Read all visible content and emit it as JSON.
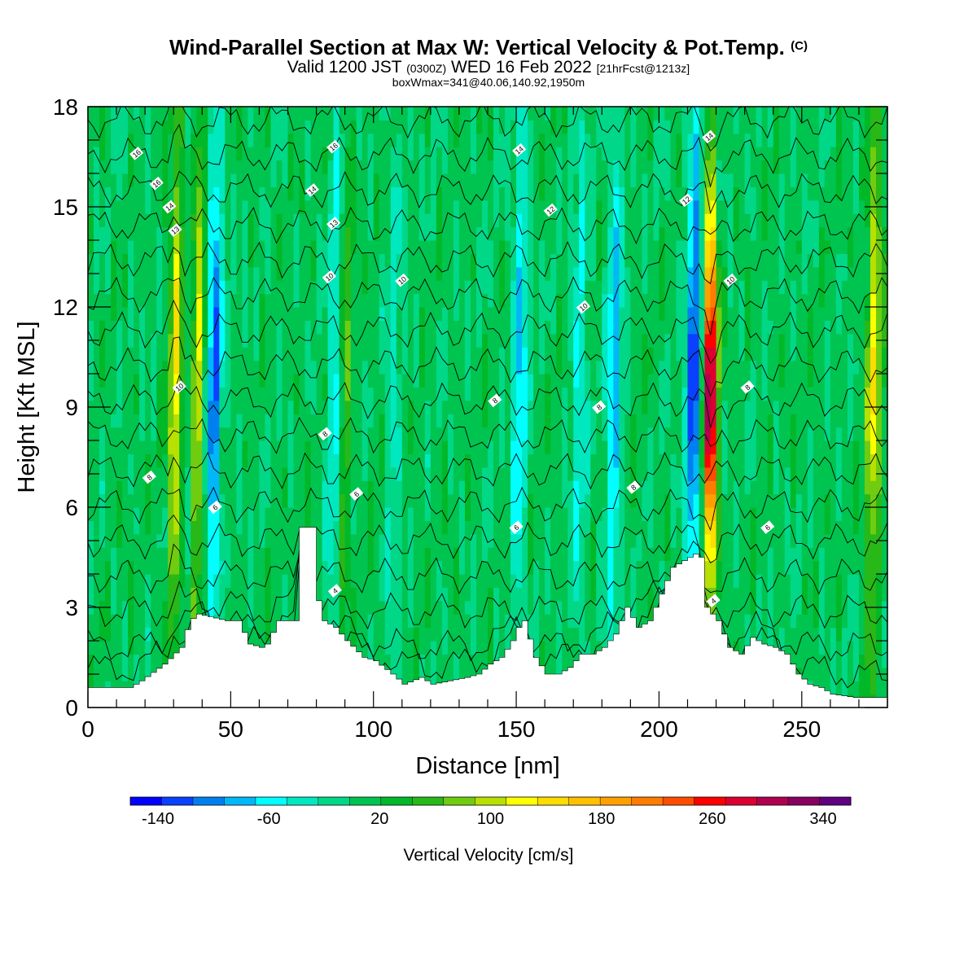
{
  "title": {
    "main": "Wind-Parallel Section at Max W: Vertical Velocity & Pot.Temp.",
    "copyright": "(C)",
    "valid_prefix": "Valid 1200 JST",
    "valid_utc": "(0300Z)",
    "valid_date": "WED 16 Feb 2022",
    "forecast": "[21hrFcst@1213z]",
    "box_info": "boxWmax=341@40.06,140.92,1950m"
  },
  "chart_data": {
    "type": "heatmap",
    "xlabel": "Distance [nm]",
    "ylabel": "Height [Kft MSL]",
    "xlim": [
      0,
      280
    ],
    "ylim": [
      0,
      18
    ],
    "x_ticks": [
      0,
      50,
      100,
      150,
      200,
      250
    ],
    "y_ticks": [
      0,
      3,
      6,
      9,
      12,
      15,
      18
    ],
    "colorbar": {
      "label": "Vertical Velocity [cm/s]",
      "tick_values": [
        -140,
        -60,
        20,
        100,
        180,
        260,
        340
      ],
      "range": [
        -160,
        360
      ],
      "colors": [
        "#0000ff",
        "#0a40ff",
        "#0080f0",
        "#00b8f8",
        "#00ffff",
        "#00e8c0",
        "#00d888",
        "#00c450",
        "#00b828",
        "#28b818",
        "#70cc10",
        "#b8e000",
        "#ffff00",
        "#ffdc00",
        "#ffc000",
        "#ffa000",
        "#ff7c00",
        "#ff4c00",
        "#ff0000",
        "#dc0030",
        "#b00050",
        "#880060",
        "#600080"
      ]
    },
    "vertical_velocity_features": [
      {
        "x": 31,
        "peak": 140
      },
      {
        "x": 38,
        "peak": 110
      },
      {
        "x": 34,
        "peak": -60
      },
      {
        "x": 44,
        "peak": -120
      },
      {
        "x": 87,
        "peak": -110
      },
      {
        "x": 89,
        "peak": 100
      },
      {
        "x": 107,
        "peak": -40
      },
      {
        "x": 151,
        "peak": -80
      },
      {
        "x": 172,
        "peak": -60
      },
      {
        "x": 184,
        "peak": -90
      },
      {
        "x": 212,
        "peak": -140
      },
      {
        "x": 218,
        "peak": 341
      },
      {
        "x": 275,
        "peak": 120
      }
    ],
    "terrain_kft": [
      [
        0,
        0.6
      ],
      [
        10,
        0.6
      ],
      [
        14,
        0.6
      ],
      [
        18,
        0.8
      ],
      [
        26,
        1.3
      ],
      [
        32,
        1.8
      ],
      [
        35,
        2.6
      ],
      [
        38,
        2.8
      ],
      [
        48,
        2.6
      ],
      [
        52,
        2.6
      ],
      [
        56,
        1.9
      ],
      [
        60,
        1.8
      ],
      [
        62,
        1.9
      ],
      [
        66,
        2.6
      ],
      [
        72,
        2.6
      ],
      [
        74,
        5.4
      ],
      [
        78,
        5.4
      ],
      [
        80,
        3.2
      ],
      [
        82,
        2.6
      ],
      [
        86,
        2.4
      ],
      [
        90,
        2.0
      ],
      [
        96,
        1.5
      ],
      [
        100,
        1.4
      ],
      [
        106,
        1.0
      ],
      [
        110,
        0.7
      ],
      [
        116,
        0.9
      ],
      [
        120,
        0.7
      ],
      [
        126,
        0.8
      ],
      [
        132,
        0.9
      ],
      [
        136,
        1.0
      ],
      [
        140,
        1.3
      ],
      [
        144,
        1.5
      ],
      [
        148,
        2.0
      ],
      [
        150,
        2.4
      ],
      [
        152,
        2.6
      ],
      [
        156,
        1.5
      ],
      [
        160,
        1.0
      ],
      [
        164,
        1.0
      ],
      [
        168,
        1.2
      ],
      [
        172,
        1.6
      ],
      [
        176,
        1.6
      ],
      [
        180,
        1.8
      ],
      [
        184,
        2.2
      ],
      [
        188,
        3.0
      ],
      [
        192,
        2.4
      ],
      [
        196,
        2.6
      ],
      [
        200,
        3.4
      ],
      [
        204,
        4.2
      ],
      [
        208,
        4.4
      ],
      [
        212,
        4.6
      ],
      [
        214,
        4.5
      ],
      [
        216,
        3.0
      ],
      [
        220,
        2.6
      ],
      [
        224,
        1.8
      ],
      [
        228,
        1.6
      ],
      [
        232,
        2.1
      ],
      [
        236,
        1.9
      ],
      [
        240,
        1.8
      ],
      [
        244,
        1.6
      ],
      [
        248,
        1.0
      ],
      [
        252,
        0.7
      ],
      [
        256,
        0.6
      ],
      [
        260,
        0.4
      ],
      [
        268,
        0.3
      ],
      [
        280,
        0.3
      ]
    ],
    "theta_contour_labels": [
      {
        "x": 17,
        "y": 16.6,
        "text": "16"
      },
      {
        "x": 24,
        "y": 15.7,
        "text": "16"
      },
      {
        "x": 28.5,
        "y": 15.0,
        "text": "14"
      },
      {
        "x": 30.5,
        "y": 14.3,
        "text": "13"
      },
      {
        "x": 32,
        "y": 9.6,
        "text": "10"
      },
      {
        "x": 21.5,
        "y": 6.9,
        "text": "8"
      },
      {
        "x": 44.5,
        "y": 6.0,
        "text": "6"
      },
      {
        "x": 86,
        "y": 16.8,
        "text": "16"
      },
      {
        "x": 78.5,
        "y": 15.5,
        "text": "14"
      },
      {
        "x": 86,
        "y": 14.5,
        "text": "13"
      },
      {
        "x": 84.5,
        "y": 12.9,
        "text": "10"
      },
      {
        "x": 83,
        "y": 8.2,
        "text": "8"
      },
      {
        "x": 94,
        "y": 6.4,
        "text": "6"
      },
      {
        "x": 86.5,
        "y": 3.5,
        "text": "4"
      },
      {
        "x": 110,
        "y": 12.8,
        "text": "10"
      },
      {
        "x": 142.5,
        "y": 9.2,
        "text": "8"
      },
      {
        "x": 151,
        "y": 16.7,
        "text": "14"
      },
      {
        "x": 162,
        "y": 14.9,
        "text": "12"
      },
      {
        "x": 150,
        "y": 5.4,
        "text": "6"
      },
      {
        "x": 173.5,
        "y": 12.0,
        "text": "10"
      },
      {
        "x": 179,
        "y": 9.0,
        "text": "8"
      },
      {
        "x": 191,
        "y": 6.6,
        "text": "8"
      },
      {
        "x": 209.5,
        "y": 15.2,
        "text": "12"
      },
      {
        "x": 217.5,
        "y": 17.1,
        "text": "14"
      },
      {
        "x": 225,
        "y": 12.8,
        "text": "10"
      },
      {
        "x": 231,
        "y": 9.6,
        "text": "8"
      },
      {
        "x": 238,
        "y": 5.4,
        "text": "6"
      },
      {
        "x": 219,
        "y": 3.2,
        "text": "4"
      }
    ]
  }
}
